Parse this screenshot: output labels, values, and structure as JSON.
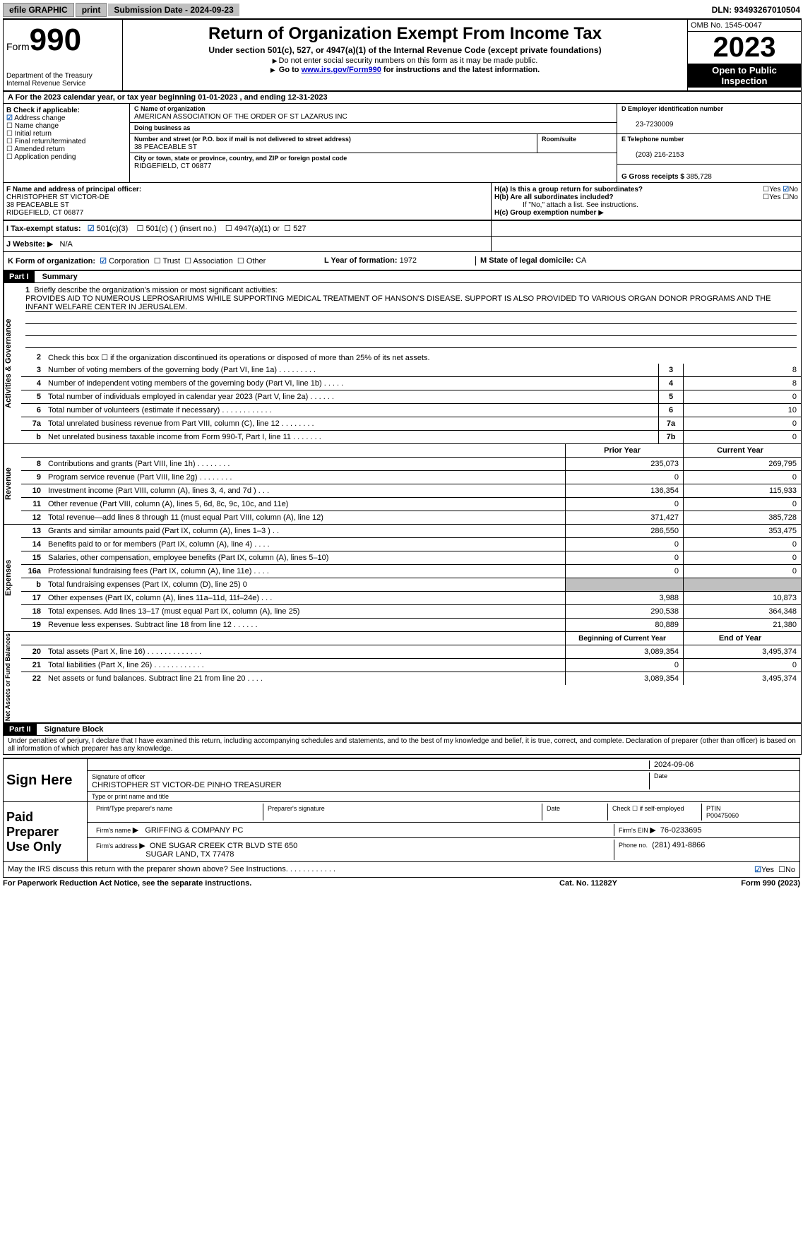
{
  "topbar": {
    "efile": "efile GRAPHIC",
    "print": "print",
    "submission": "Submission Date - 2024-09-23",
    "dln": "DLN: 93493267010504"
  },
  "header": {
    "form_word": "Form",
    "form_num": "990",
    "title": "Return of Organization Exempt From Income Tax",
    "subtitle": "Under section 501(c), 527, or 4947(a)(1) of the Internal Revenue Code (except private foundations)",
    "sub2": "Do not enter social security numbers on this form as it may be made public.",
    "sub3_pre": "Go to ",
    "sub3_link": "www.irs.gov/Form990",
    "sub3_post": " for instructions and the latest information.",
    "dept": "Department of the Treasury\nInternal Revenue Service",
    "omb": "OMB No. 1545-0047",
    "year": "2023",
    "open": "Open to Public Inspection"
  },
  "row_a": "A For the 2023 calendar year, or tax year beginning 01-01-2023    , and ending 12-31-2023",
  "col_b": {
    "label": "B Check if applicable:",
    "items": [
      {
        "checked": true,
        "label": "Address change"
      },
      {
        "checked": false,
        "label": "Name change"
      },
      {
        "checked": false,
        "label": "Initial return"
      },
      {
        "checked": false,
        "label": "Final return/terminated"
      },
      {
        "checked": false,
        "label": "Amended return"
      },
      {
        "checked": false,
        "label": "Application pending"
      }
    ]
  },
  "col_c": {
    "name_label": "C Name of organization",
    "name": "AMERICAN ASSOCIATION OF THE ORDER OF ST LAZARUS INC",
    "dba_label": "Doing business as",
    "dba": "",
    "street_label": "Number and street (or P.O. box if mail is not delivered to street address)",
    "street": "38 PEACEABLE ST",
    "room_label": "Room/suite",
    "room": "",
    "city_label": "City or town, state or province, country, and ZIP or foreign postal code",
    "city": "RIDGEFIELD, CT  06877"
  },
  "col_d": {
    "d_label": "D Employer identification number",
    "d_val": "23-7230009",
    "e_label": "E Telephone number",
    "e_val": "(203) 216-2153",
    "g_label": "G Gross receipts $",
    "g_val": "385,728"
  },
  "section_f": {
    "f_label": "F Name and address of principal officer:",
    "f_name": "CHRISTOPHER ST VICTOR-DE",
    "f_addr1": "38 PEACEABLE ST",
    "f_addr2": "RIDGEFIELD, CT  06877",
    "ha": "H(a)  Is this a group return for subordinates?",
    "ha_yes": "Yes",
    "ha_no": "No",
    "hb": "H(b)  Are all subordinates included?",
    "hb_yes": "Yes",
    "hb_no": "No",
    "hb_note": "If \"No,\" attach a list. See instructions.",
    "hc": "H(c)  Group exemption number"
  },
  "row_i": {
    "label": "I    Tax-exempt status:",
    "c3": "501(c)(3)",
    "c_paren": "501(c) (   ) (insert no.)",
    "a1": "4947(a)(1) or",
    "s527": "527"
  },
  "row_j": {
    "label": "J    Website:",
    "val": "N/A"
  },
  "row_k": {
    "label": "K Form of organization:",
    "corp": "Corporation",
    "trust": "Trust",
    "assoc": "Association",
    "other": "Other",
    "l_label": "L Year of formation:",
    "l_val": "1972",
    "m_label": "M State of legal domicile:",
    "m_val": "CA"
  },
  "part1": {
    "hdr": "Part I",
    "title": "Summary",
    "vtab1": "Activities & Governance",
    "vtab2": "Revenue",
    "vtab3": "Expenses",
    "vtab4": "Net Assets or Fund Balances",
    "line1_label": "Briefly describe the organization's mission or most significant activities:",
    "line1_text": "PROVIDES AID TO NUMEROUS LEPROSARIUMS WHILE SUPPORTING MEDICAL TREATMENT OF HANSON'S DISEASE. SUPPORT IS ALSO PROVIDED TO VARIOUS ORGAN DONOR PROGRAMS AND THE INFANT WELFARE CENTER IN JERUSALEM.",
    "line2": "Check this box   ☐   if the organization discontinued its operations or disposed of more than 25% of its net assets.",
    "lines_a": [
      {
        "n": "3",
        "t": "Number of voting members of the governing body (Part VI, line 1a)    .    .    .    .    .    .    .    .    .",
        "box": "3",
        "v": "8"
      },
      {
        "n": "4",
        "t": "Number of independent voting members of the governing body (Part VI, line 1b)    .    .    .    .    .",
        "box": "4",
        "v": "8"
      },
      {
        "n": "5",
        "t": "Total number of individuals employed in calendar year 2023 (Part V, line 2a)    .    .    .    .    .    .",
        "box": "5",
        "v": "0"
      },
      {
        "n": "6",
        "t": "Total number of volunteers (estimate if necessary)     .    .    .    .    .    .    .    .    .    .    .    .",
        "box": "6",
        "v": "10"
      },
      {
        "n": "7a",
        "t": "Total unrelated business revenue from Part VIII, column (C), line 12   .    .    .    .    .    .    .    .",
        "box": "7a",
        "v": "0"
      },
      {
        "n": "b",
        "t": "Net unrelated business taxable income from Form 990-T, Part I, line 11    .    .    .    .    .    .    .",
        "box": "7b",
        "v": "0"
      }
    ],
    "col_prior": "Prior Year",
    "col_current": "Current Year",
    "lines_rev": [
      {
        "n": "8",
        "t": "Contributions and grants (Part VIII, line 1h)    .    .    .    .    .    .    .    .",
        "p": "235,073",
        "c": "269,795"
      },
      {
        "n": "9",
        "t": "Program service revenue (Part VIII, line 2g)    .    .    .    .    .    .    .    .",
        "p": "0",
        "c": "0"
      },
      {
        "n": "10",
        "t": "Investment income (Part VIII, column (A), lines 3, 4, and 7d )    .    .    .",
        "p": "136,354",
        "c": "115,933"
      },
      {
        "n": "11",
        "t": "Other revenue (Part VIII, column (A), lines 5, 6d, 8c, 9c, 10c, and 11e)",
        "p": "0",
        "c": "0"
      },
      {
        "n": "12",
        "t": "Total revenue—add lines 8 through 11 (must equal Part VIII, column (A), line 12)",
        "p": "371,427",
        "c": "385,728"
      }
    ],
    "lines_exp": [
      {
        "n": "13",
        "t": "Grants and similar amounts paid (Part IX, column (A), lines 1–3 )    .    .",
        "p": "286,550",
        "c": "353,475"
      },
      {
        "n": "14",
        "t": "Benefits paid to or for members (Part IX, column (A), line 4)   .    .    .    .",
        "p": "0",
        "c": "0"
      },
      {
        "n": "15",
        "t": "Salaries, other compensation, employee benefits (Part IX, column (A), lines 5–10)",
        "p": "0",
        "c": "0"
      },
      {
        "n": "16a",
        "t": "Professional fundraising fees (Part IX, column (A), line 11e)    .    .    .    .",
        "p": "0",
        "c": "0"
      },
      {
        "n": "b",
        "t": "Total fundraising expenses (Part IX, column (D), line 25) 0",
        "p": "",
        "c": "",
        "shaded": true
      },
      {
        "n": "17",
        "t": "Other expenses (Part IX, column (A), lines 11a–11d, 11f–24e)    .    .    .",
        "p": "3,988",
        "c": "10,873"
      },
      {
        "n": "18",
        "t": "Total expenses. Add lines 13–17 (must equal Part IX, column (A), line 25)",
        "p": "290,538",
        "c": "364,348"
      },
      {
        "n": "19",
        "t": "Revenue less expenses. Subtract line 18 from line 12    .    .    .    .    .    .",
        "p": "80,889",
        "c": "21,380"
      }
    ],
    "col_begin": "Beginning of Current Year",
    "col_end": "End of Year",
    "lines_net": [
      {
        "n": "20",
        "t": "Total assets (Part X, line 16)   .    .    .    .    .    .    .    .    .    .    .    .    .",
        "p": "3,089,354",
        "c": "3,495,374"
      },
      {
        "n": "21",
        "t": "Total liabilities (Part X, line 26)    .    .    .    .    .    .    .    .    .    .    .    .",
        "p": "0",
        "c": "0"
      },
      {
        "n": "22",
        "t": "Net assets or fund balances. Subtract line 21 from line 20   .    .    .    .",
        "p": "3,089,354",
        "c": "3,495,374"
      }
    ]
  },
  "part2": {
    "hdr": "Part II",
    "title": "Signature Block",
    "decl": "Under penalties of perjury, I declare that I have examined this return, including accompanying schedules and statements, and to the best of my knowledge and belief, it is true, correct, and complete. Declaration of preparer (other than officer) is based on all information of which preparer has any knowledge.",
    "sign_here": "Sign Here",
    "sig_label": "Signature of officer",
    "sig_name": "CHRISTOPHER ST VICTOR-DE PINHO  TREASURER",
    "sig_type_label": "Type or print name and title",
    "date_label": "Date",
    "date_val": "2024-09-06",
    "paid": "Paid Preparer Use Only",
    "prep_name_label": "Print/Type preparer's name",
    "prep_name": "",
    "prep_sig_label": "Preparer's signature",
    "prep_date_label": "Date",
    "self_emp": "Check ☐ if self-employed",
    "ptin_label": "PTIN",
    "ptin": "P00475060",
    "firm_name_label": "Firm's name   ",
    "firm_name": "GRIFFING & COMPANY PC",
    "firm_ein_label": "Firm's EIN  ",
    "firm_ein": "76-0233695",
    "firm_addr_label": "Firm's address ",
    "firm_addr1": "ONE SUGAR CREEK CTR BLVD STE 650",
    "firm_addr2": "SUGAR LAND, TX  77478",
    "phone_label": "Phone no.",
    "phone": "(281) 491-8866",
    "discuss": "May the IRS discuss this return with the preparer shown above? See Instructions.    .    .    .    .    .    .    .    .    .    .    .",
    "yes": "Yes",
    "no": "No"
  },
  "footer": {
    "left": "For Paperwork Reduction Act Notice, see the separate instructions.",
    "mid": "Cat. No. 11282Y",
    "right": "Form 990 (2023)"
  }
}
